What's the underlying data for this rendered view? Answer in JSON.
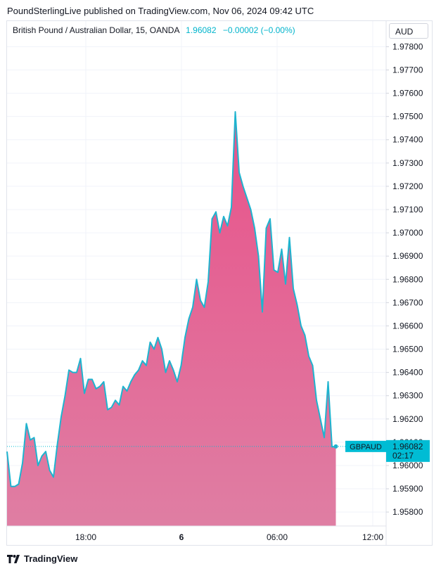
{
  "header": {
    "publisher_line": "PoundSterlingLive published on TradingView.com, Nov 06, 2024 09:42 UTC"
  },
  "legend": {
    "symbol": "British Pound / Australian Dollar, 15, OANDA",
    "last": "1.96082",
    "change": "−0.00002 (−0.00%)"
  },
  "currency_button": "AUD",
  "price_label": {
    "ticker": "GBPAUD",
    "price": "1.96082",
    "countdown": "02:17"
  },
  "footer": {
    "brand": "TradingView"
  },
  "colors": {
    "line": "#1eb4cf",
    "area_top": "#e8528a",
    "area_bottom": "#df7ea3",
    "label_bg": "#00bcd4"
  },
  "chart_data": {
    "type": "area",
    "title": "",
    "xlabel": "",
    "ylabel": "",
    "x_ticks": [
      "18:00",
      "6",
      "06:00",
      "12:00"
    ],
    "y_ticks": [
      "1.95800",
      "1.95900",
      "1.96000",
      "1.96100",
      "1.96200",
      "1.96300",
      "1.96400",
      "1.96500",
      "1.96600",
      "1.96700",
      "1.96800",
      "1.96900",
      "1.97000",
      "1.97100",
      "1.97200",
      "1.97300",
      "1.97400",
      "1.97500",
      "1.97600",
      "1.97700",
      "1.97800"
    ],
    "ylim": [
      1.9574,
      1.9791
    ],
    "grid": true,
    "series": [
      {
        "values": [
          1.9606,
          1.9591,
          1.9591,
          1.9592,
          1.9601,
          1.9618,
          1.9611,
          1.9612,
          1.96,
          1.9604,
          1.9606,
          1.9598,
          1.9595,
          1.9609,
          1.9621,
          1.963,
          1.9641,
          1.964,
          1.964,
          1.9646,
          1.9631,
          1.9637,
          1.9637,
          1.9633,
          1.9634,
          1.9636,
          1.9624,
          1.9625,
          1.9628,
          1.9626,
          1.9634,
          1.9632,
          1.9636,
          1.9639,
          1.9641,
          1.9645,
          1.9643,
          1.9653,
          1.965,
          1.9655,
          1.965,
          1.964,
          1.9645,
          1.9641,
          1.9636,
          1.9643,
          1.9655,
          1.9663,
          1.9668,
          1.968,
          1.9671,
          1.9668,
          1.9679,
          1.9706,
          1.9709,
          1.97,
          1.9707,
          1.9703,
          1.9711,
          1.9752,
          1.9726,
          1.972,
          1.9715,
          1.971,
          1.9702,
          1.969,
          1.9666,
          1.9702,
          1.9706,
          1.9684,
          1.9683,
          1.9693,
          1.9678,
          1.9698,
          1.9676,
          1.9669,
          1.966,
          1.9656,
          1.9647,
          1.9643,
          1.9628,
          1.962,
          1.9612,
          1.9636,
          1.9608,
          1.96082
        ]
      }
    ]
  }
}
